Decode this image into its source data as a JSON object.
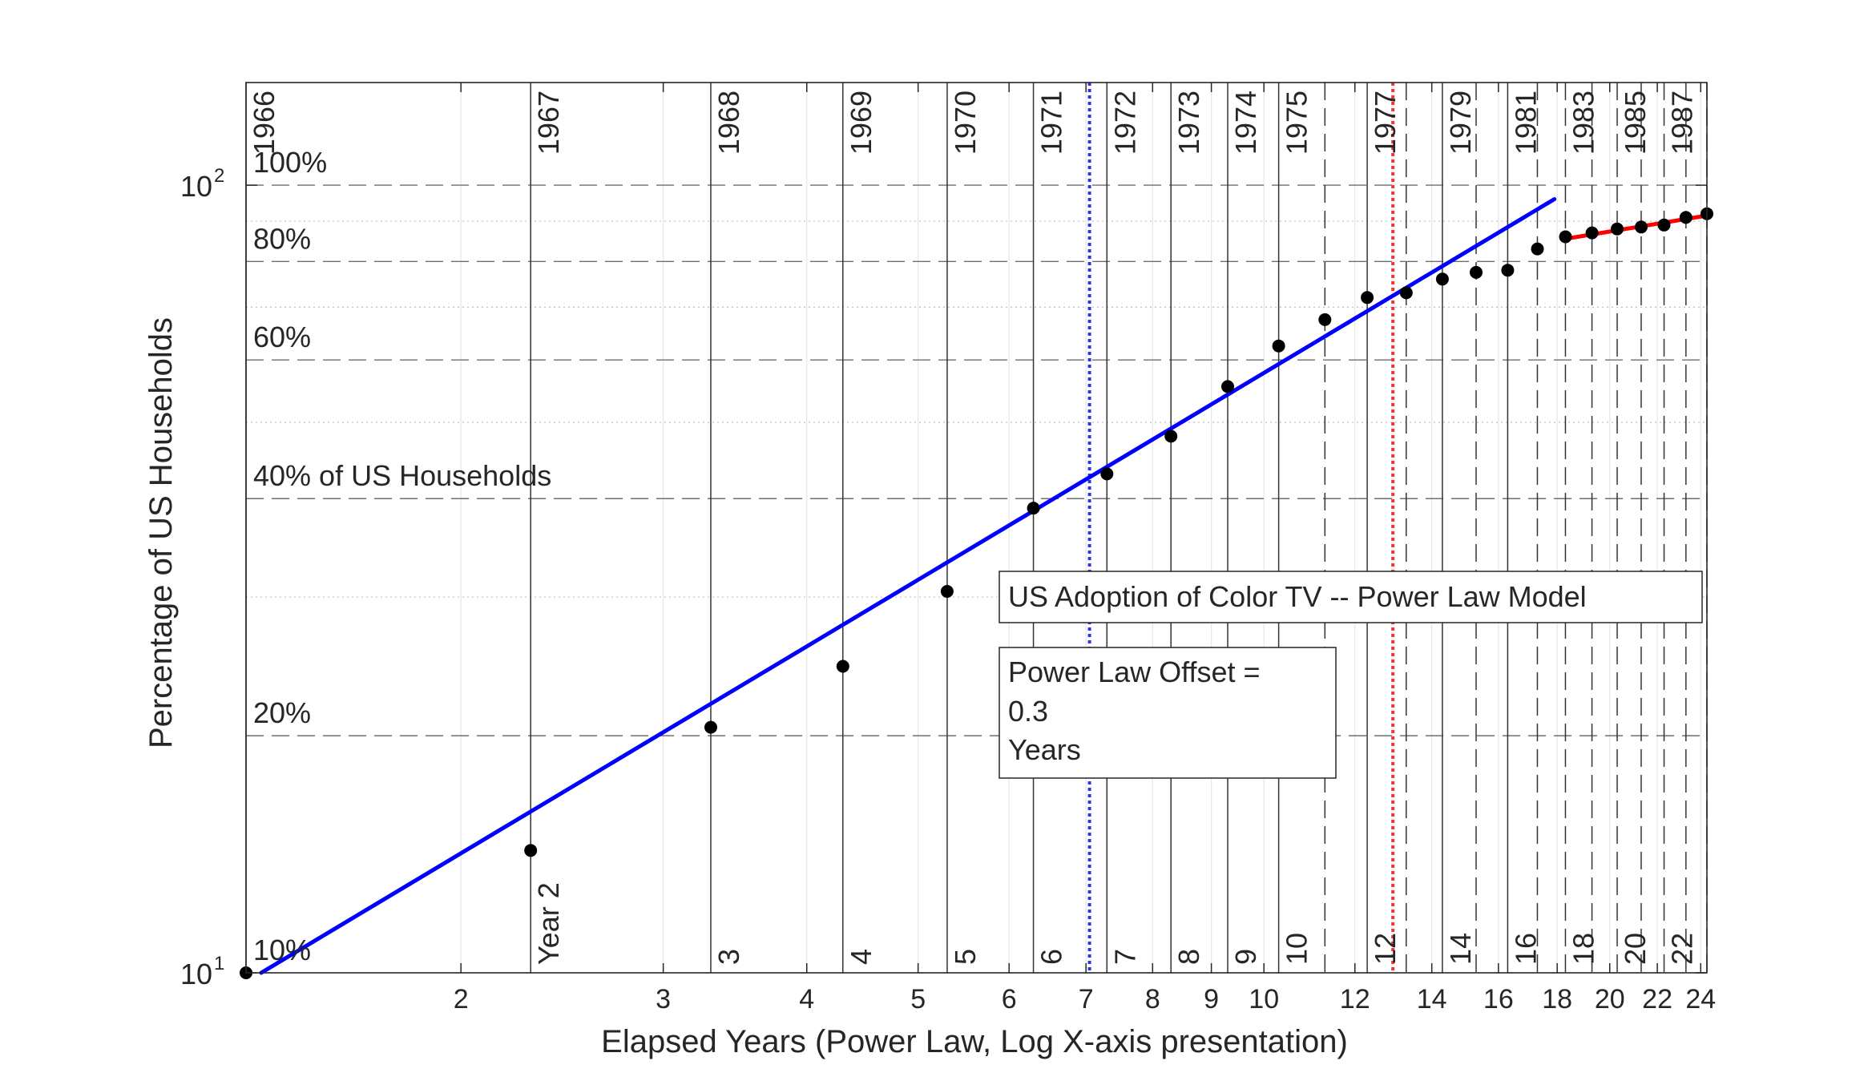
{
  "chart_data": {
    "type": "scatter",
    "title": "",
    "xlabel": "Elapsed Years (Power Law, Log X-axis presentation)",
    "ylabel": "Percentage of US Households",
    "x_scale": "log",
    "y_scale": "log",
    "xlim": [
      1.3,
      24.3
    ],
    "ylim": [
      10,
      135
    ],
    "x_ticks": [
      2,
      3,
      4,
      5,
      6,
      7,
      8,
      9,
      10,
      12,
      14,
      16,
      18,
      20,
      22,
      24
    ],
    "y_ticks": [
      {
        "value": 10,
        "base": "10",
        "exp": "1"
      },
      {
        "value": 100,
        "base": "10",
        "exp": "2"
      }
    ],
    "y_gridlines_dashed": [
      20,
      40,
      60,
      80,
      100
    ],
    "y_gridlines_dotted": [
      30,
      50,
      70,
      90
    ],
    "y_grid_labels": [
      {
        "value": 10,
        "text": "10%"
      },
      {
        "value": 20,
        "text": "20%"
      },
      {
        "value": 40,
        "text": "40% of US Households"
      },
      {
        "value": 60,
        "text": "60%"
      },
      {
        "value": 80,
        "text": "80%"
      },
      {
        "value": 100,
        "text": "100%"
      }
    ],
    "calendar_year_lines": [
      {
        "x": 1.3,
        "year": "1966",
        "style": "solid",
        "elapsed": ""
      },
      {
        "x": 2.3,
        "year": "1967",
        "style": "solid",
        "elapsed": "Year 2"
      },
      {
        "x": 3.3,
        "year": "1968",
        "style": "solid",
        "elapsed": "3"
      },
      {
        "x": 4.3,
        "year": "1969",
        "style": "solid",
        "elapsed": "4"
      },
      {
        "x": 5.3,
        "year": "1970",
        "style": "solid",
        "elapsed": "5"
      },
      {
        "x": 6.3,
        "year": "1971",
        "style": "solid",
        "elapsed": "6"
      },
      {
        "x": 7.3,
        "year": "1972",
        "style": "solid",
        "elapsed": "7"
      },
      {
        "x": 8.3,
        "year": "1973",
        "style": "solid",
        "elapsed": "8"
      },
      {
        "x": 9.3,
        "year": "1974",
        "style": "solid",
        "elapsed": "9"
      },
      {
        "x": 10.3,
        "year": "1975",
        "style": "solid",
        "elapsed": "10"
      },
      {
        "x": 11.3,
        "year": "",
        "style": "dashed",
        "elapsed": ""
      },
      {
        "x": 12.3,
        "year": "1977",
        "style": "solid",
        "elapsed": "12"
      },
      {
        "x": 13.3,
        "year": "",
        "style": "dashed",
        "elapsed": ""
      },
      {
        "x": 14.3,
        "year": "1979",
        "style": "solid",
        "elapsed": "14"
      },
      {
        "x": 15.3,
        "year": "",
        "style": "dashed",
        "elapsed": ""
      },
      {
        "x": 16.3,
        "year": "1981",
        "style": "solid",
        "elapsed": "16"
      },
      {
        "x": 17.3,
        "year": "",
        "style": "dashed",
        "elapsed": ""
      },
      {
        "x": 18.3,
        "year": "1983",
        "style": "dashed",
        "elapsed": "18"
      },
      {
        "x": 19.3,
        "year": "",
        "style": "dashed",
        "elapsed": ""
      },
      {
        "x": 20.3,
        "year": "1985",
        "style": "dashed",
        "elapsed": "20"
      },
      {
        "x": 21.3,
        "year": "",
        "style": "dashed",
        "elapsed": ""
      },
      {
        "x": 22.3,
        "year": "1987",
        "style": "dashed",
        "elapsed": "22"
      },
      {
        "x": 23.3,
        "year": "",
        "style": "dashed",
        "elapsed": ""
      },
      {
        "x": 24.3,
        "year": "",
        "style": "dashed",
        "elapsed": ""
      }
    ],
    "series": [
      {
        "name": "",
        "kind": "points",
        "color": "#000000",
        "points": [
          [
            1.3,
            10
          ],
          [
            2.3,
            14.3
          ],
          [
            3.3,
            20.5
          ],
          [
            4.3,
            24.5
          ],
          [
            5.3,
            30.5
          ],
          [
            6.3,
            38.9
          ],
          [
            7.3,
            43.0
          ],
          [
            8.3,
            48.0
          ],
          [
            9.3,
            55.5
          ],
          [
            10.3,
            62.5
          ],
          [
            11.3,
            67.5
          ],
          [
            12.3,
            72.0
          ],
          [
            13.3,
            73.0
          ],
          [
            14.3,
            76.0
          ],
          [
            15.3,
            77.5
          ],
          [
            16.3,
            78.0
          ],
          [
            17.3,
            83.0
          ],
          [
            18.3,
            86.0
          ],
          [
            19.3,
            87.0
          ],
          [
            20.3,
            88.0
          ],
          [
            21.3,
            88.5
          ],
          [
            22.3,
            89.0
          ],
          [
            23.3,
            91.0
          ],
          [
            24.3,
            92.0
          ]
        ]
      },
      {
        "name": "",
        "kind": "line",
        "color": "#0000ff",
        "points": [
          [
            1.34,
            10
          ],
          [
            17.9,
            96
          ]
        ]
      },
      {
        "name": "",
        "kind": "line",
        "color": "#ff0000",
        "points": [
          [
            18.3,
            85.5
          ],
          [
            24.3,
            91.5
          ]
        ]
      }
    ],
    "vertical_markers": [
      {
        "x": 7.05,
        "color": "#2f2fff"
      },
      {
        "x": 12.95,
        "color": "#ff3030"
      }
    ],
    "annotations": [
      {
        "id": "title-box",
        "lines": [
          "US Adoption of Color TV -- Power Law Model"
        ]
      },
      {
        "id": "offset-box",
        "lines": [
          "Power Law Offset =",
          "0.3",
          "Years"
        ]
      }
    ],
    "grid": true,
    "legend": "none"
  }
}
